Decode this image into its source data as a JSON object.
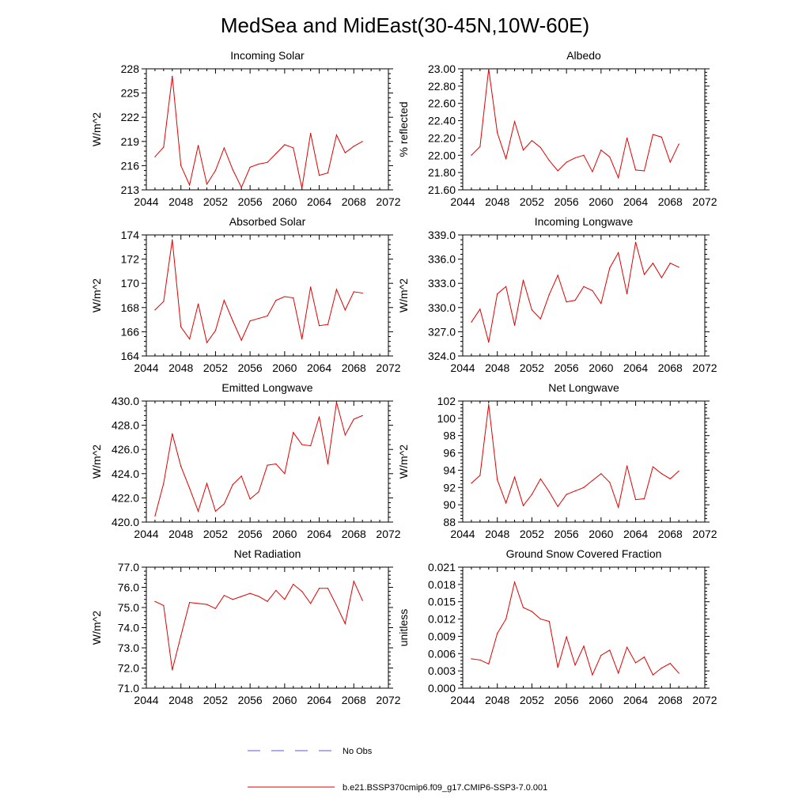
{
  "figure": {
    "title": "MedSea and MidEast(30-45N,10W-60E)"
  },
  "legend": {
    "items": [
      {
        "label": "No Obs",
        "color": "#5a5ad2",
        "style": "dashed"
      },
      {
        "label": "b.e21.BSSP370cmip6.f09_g17.CMIP6-SSP3-7.0.001",
        "color": "#e00000",
        "style": "solid"
      }
    ]
  },
  "chart_data": [
    {
      "type": "line",
      "title": "Incoming Solar",
      "ylabel": "W/m^2",
      "xlim": [
        2044,
        2072
      ],
      "ylim": [
        213,
        228
      ],
      "xticks": [
        "2044",
        "2048",
        "2052",
        "2056",
        "2060",
        "2064",
        "2068",
        "2072"
      ],
      "yticks": [
        "213",
        "216",
        "219",
        "222",
        "225",
        "228"
      ],
      "color": "#e00000",
      "x": [
        2045,
        2046,
        2047,
        2048,
        2049,
        2050,
        2051,
        2052,
        2053,
        2054,
        2055,
        2056,
        2057,
        2058,
        2059,
        2060,
        2061,
        2062,
        2063,
        2064,
        2065,
        2066,
        2067,
        2068,
        2069
      ],
      "y": [
        217.1,
        218.3,
        227.1,
        216.0,
        213.6,
        218.5,
        213.7,
        215.4,
        218.2,
        215.5,
        213.3,
        215.8,
        216.2,
        216.4,
        217.5,
        218.6,
        218.2,
        213.2,
        220.0,
        214.8,
        215.1,
        219.8,
        217.6,
        218.4,
        219.0
      ]
    },
    {
      "type": "line",
      "title": "Albedo",
      "ylabel": "% reflected",
      "xlim": [
        2044,
        2072
      ],
      "ylim": [
        21.6,
        23.0
      ],
      "xticks": [
        "2044",
        "2048",
        "2052",
        "2056",
        "2060",
        "2064",
        "2068",
        "2072"
      ],
      "yticks": [
        "21.60",
        "21.80",
        "22.00",
        "22.20",
        "22.40",
        "22.60",
        "22.80",
        "23.00"
      ],
      "color": "#e00000",
      "x": [
        2045,
        2046,
        2047,
        2048,
        2049,
        2050,
        2051,
        2052,
        2053,
        2054,
        2055,
        2056,
        2057,
        2058,
        2059,
        2060,
        2061,
        2062,
        2063,
        2064,
        2065,
        2066,
        2067,
        2068,
        2069
      ],
      "y": [
        22.0,
        22.1,
        23.0,
        22.26,
        21.96,
        22.39,
        22.06,
        22.17,
        22.09,
        21.94,
        21.82,
        21.92,
        21.97,
        22.0,
        21.81,
        22.06,
        21.98,
        21.74,
        22.2,
        21.83,
        21.82,
        22.24,
        22.21,
        21.92,
        22.13
      ]
    },
    {
      "type": "line",
      "title": "Absorbed Solar",
      "ylabel": "W/m^2",
      "xlim": [
        2044,
        2072
      ],
      "ylim": [
        164,
        174
      ],
      "xticks": [
        "2044",
        "2048",
        "2052",
        "2056",
        "2060",
        "2064",
        "2068",
        "2072"
      ],
      "yticks": [
        "164",
        "166",
        "168",
        "170",
        "172",
        "174"
      ],
      "color": "#e00000",
      "x": [
        2045,
        2046,
        2047,
        2048,
        2049,
        2050,
        2051,
        2052,
        2053,
        2054,
        2055,
        2056,
        2057,
        2058,
        2059,
        2060,
        2061,
        2062,
        2063,
        2064,
        2065,
        2066,
        2067,
        2068,
        2069
      ],
      "y": [
        167.8,
        168.5,
        173.6,
        166.4,
        165.4,
        168.3,
        165.1,
        166.1,
        168.6,
        166.9,
        165.3,
        166.9,
        167.1,
        167.3,
        168.6,
        168.9,
        168.8,
        165.4,
        169.7,
        166.5,
        166.6,
        169.5,
        167.8,
        169.3,
        169.2
      ]
    },
    {
      "type": "line",
      "title": "Incoming Longwave",
      "ylabel": "W/m^2",
      "xlim": [
        2044,
        2072
      ],
      "ylim": [
        324,
        339
      ],
      "xticks": [
        "2044",
        "2048",
        "2052",
        "2056",
        "2060",
        "2064",
        "2068",
        "2072"
      ],
      "yticks": [
        "324.0",
        "327.0",
        "330.0",
        "333.0",
        "336.0",
        "339.0"
      ],
      "color": "#e00000",
      "x": [
        2045,
        2046,
        2047,
        2048,
        2049,
        2050,
        2051,
        2052,
        2053,
        2054,
        2055,
        2056,
        2057,
        2058,
        2059,
        2060,
        2061,
        2062,
        2063,
        2064,
        2065,
        2066,
        2067,
        2068,
        2069
      ],
      "y": [
        328.2,
        329.8,
        325.7,
        331.7,
        332.6,
        327.8,
        333.4,
        329.7,
        328.6,
        331.6,
        334.0,
        330.7,
        330.9,
        332.6,
        332.1,
        330.5,
        334.9,
        336.8,
        331.7,
        338.1,
        334.1,
        335.5,
        333.7,
        335.5,
        335.0
      ]
    },
    {
      "type": "line",
      "title": "Emitted Longwave",
      "ylabel": "W/m^2",
      "xlim": [
        2044,
        2072
      ],
      "ylim": [
        420,
        430
      ],
      "xticks": [
        "2044",
        "2048",
        "2052",
        "2056",
        "2060",
        "2064",
        "2068",
        "2072"
      ],
      "yticks": [
        "420.0",
        "422.0",
        "424.0",
        "426.0",
        "428.0",
        "430.0"
      ],
      "color": "#e00000",
      "x": [
        2045,
        2046,
        2047,
        2048,
        2049,
        2050,
        2051,
        2052,
        2053,
        2054,
        2055,
        2056,
        2057,
        2058,
        2059,
        2060,
        2061,
        2062,
        2063,
        2064,
        2065,
        2066,
        2067,
        2068,
        2069
      ],
      "y": [
        420.5,
        423.2,
        427.3,
        424.6,
        422.8,
        420.9,
        423.2,
        420.9,
        421.5,
        423.1,
        423.8,
        421.9,
        422.5,
        424.7,
        424.8,
        424.0,
        427.4,
        426.4,
        426.3,
        428.7,
        424.8,
        429.9,
        427.2,
        428.5,
        428.8
      ]
    },
    {
      "type": "line",
      "title": "Net Longwave",
      "ylabel": "W/m^2",
      "xlim": [
        2044,
        2072
      ],
      "ylim": [
        88,
        102
      ],
      "xticks": [
        "2044",
        "2048",
        "2052",
        "2056",
        "2060",
        "2064",
        "2068",
        "2072"
      ],
      "yticks": [
        "88",
        "90",
        "92",
        "94",
        "96",
        "98",
        "100",
        "102"
      ],
      "color": "#e00000",
      "x": [
        2045,
        2046,
        2047,
        2048,
        2049,
        2050,
        2051,
        2052,
        2053,
        2054,
        2055,
        2056,
        2057,
        2058,
        2059,
        2060,
        2061,
        2062,
        2063,
        2064,
        2065,
        2066,
        2067,
        2068,
        2069
      ],
      "y": [
        92.5,
        93.4,
        101.6,
        92.9,
        90.2,
        93.2,
        89.9,
        91.2,
        93.0,
        91.5,
        89.8,
        91.2,
        91.6,
        92.0,
        92.8,
        93.6,
        92.6,
        89.7,
        94.5,
        90.6,
        90.7,
        94.4,
        93.6,
        93.0,
        93.9
      ]
    },
    {
      "type": "line",
      "title": "Net Radiation",
      "ylabel": "W/m^2",
      "xlim": [
        2044,
        2072
      ],
      "ylim": [
        71,
        77
      ],
      "xticks": [
        "2044",
        "2048",
        "2052",
        "2056",
        "2060",
        "2064",
        "2068",
        "2072"
      ],
      "yticks": [
        "71.0",
        "72.0",
        "73.0",
        "74.0",
        "75.0",
        "76.0",
        "77.0"
      ],
      "color": "#e00000",
      "x": [
        2045,
        2046,
        2047,
        2048,
        2049,
        2050,
        2051,
        2052,
        2053,
        2054,
        2055,
        2056,
        2057,
        2058,
        2059,
        2060,
        2061,
        2062,
        2063,
        2064,
        2065,
        2066,
        2067,
        2068,
        2069
      ],
      "y": [
        75.3,
        75.1,
        71.9,
        73.6,
        75.25,
        75.2,
        75.15,
        74.95,
        75.6,
        75.4,
        75.55,
        75.7,
        75.55,
        75.3,
        75.85,
        75.4,
        76.15,
        75.8,
        75.2,
        75.95,
        75.95,
        75.1,
        74.2,
        76.3,
        75.35
      ]
    },
    {
      "type": "line",
      "title": "Ground Snow Covered Fraction",
      "ylabel": "unitless",
      "xlim": [
        2044,
        2072
      ],
      "ylim": [
        0.0,
        0.021
      ],
      "xticks": [
        "2044",
        "2048",
        "2052",
        "2056",
        "2060",
        "2064",
        "2068",
        "2072"
      ],
      "yticks": [
        "0.000",
        "0.003",
        "0.006",
        "0.009",
        "0.012",
        "0.015",
        "0.018",
        "0.021"
      ],
      "color": "#e00000",
      "x": [
        2045,
        2046,
        2047,
        2048,
        2049,
        2050,
        2051,
        2052,
        2053,
        2054,
        2055,
        2056,
        2057,
        2058,
        2059,
        2060,
        2061,
        2062,
        2063,
        2064,
        2065,
        2066,
        2067,
        2068,
        2069
      ],
      "y": [
        0.0051,
        0.0049,
        0.0042,
        0.0095,
        0.012,
        0.0184,
        0.014,
        0.0133,
        0.012,
        0.0116,
        0.0036,
        0.0089,
        0.004,
        0.0073,
        0.0023,
        0.0057,
        0.0066,
        0.0026,
        0.0071,
        0.0044,
        0.0054,
        0.0023,
        0.0035,
        0.0043,
        0.0026
      ]
    }
  ]
}
